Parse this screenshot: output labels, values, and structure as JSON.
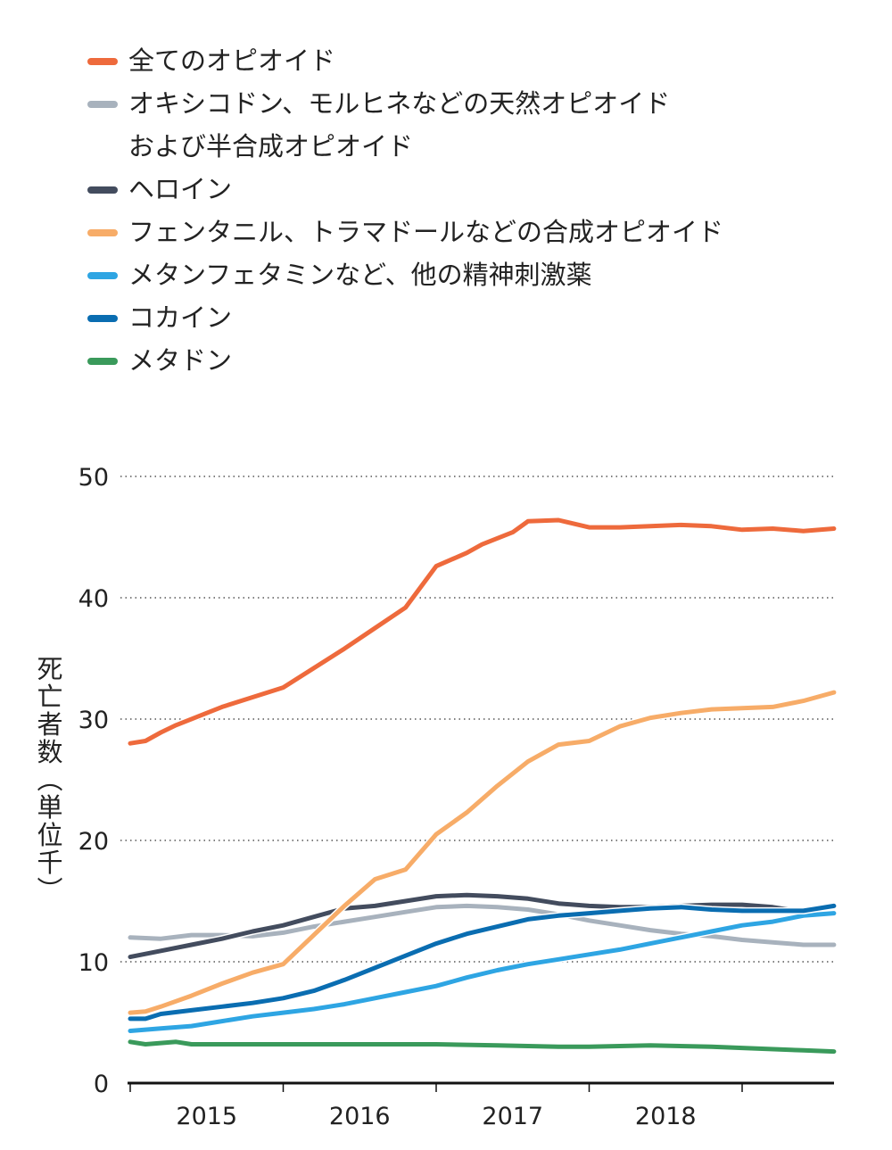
{
  "chart_data": {
    "type": "line",
    "title": "",
    "xlabel": "",
    "ylabel": "死亡者数（単位 千）",
    "ylim": [
      0,
      50
    ],
    "xlim": [
      2015,
      2019.6
    ],
    "yticks": [
      0,
      10,
      20,
      30,
      40,
      50
    ],
    "xticks": [
      "2015",
      "2016",
      "2017",
      "2018"
    ],
    "grid": "horizontal dotted",
    "legend_position": "top-left",
    "series": [
      {
        "name": "全てのオピオイド",
        "color": "#EE6A3C",
        "x": [
          2015,
          2015.1,
          2015.2,
          2015.3,
          2015.5,
          2015.6,
          2015.8,
          2016,
          2016.2,
          2016.4,
          2016.6,
          2016.8,
          2017,
          2017.2,
          2017.3,
          2017.5,
          2017.6,
          2017.8,
          2018,
          2018.2,
          2018.4,
          2018.6,
          2018.8,
          2019,
          2019.2,
          2019.4,
          2019.6
        ],
        "y": [
          28,
          28.2,
          28.9,
          29.5,
          30.5,
          31,
          31.8,
          32.6,
          34.2,
          35.8,
          37.5,
          39.2,
          42.6,
          43.7,
          44.4,
          45.4,
          46.3,
          46.4,
          45.8,
          45.8,
          45.9,
          46.0,
          45.9,
          45.6,
          45.7,
          45.5,
          45.7
        ]
      },
      {
        "name": "オキシコドン、モルヒネなどの天然オピオイド\nおよび半合成オピオイド",
        "color": "#A8B2BD",
        "x": [
          2015,
          2015.2,
          2015.4,
          2015.6,
          2015.8,
          2016,
          2016.2,
          2016.4,
          2016.6,
          2016.8,
          2017,
          2017.2,
          2017.4,
          2017.6,
          2017.8,
          2018,
          2018.2,
          2018.4,
          2018.6,
          2018.8,
          2019,
          2019.2,
          2019.4,
          2019.6
        ],
        "y": [
          12,
          11.9,
          12.2,
          12.2,
          12.1,
          12.4,
          12.9,
          13.3,
          13.7,
          14.1,
          14.5,
          14.6,
          14.5,
          14.3,
          13.9,
          13.4,
          13.0,
          12.6,
          12.3,
          12.1,
          11.8,
          11.6,
          11.4,
          11.4
        ]
      },
      {
        "name": "ヘロイン",
        "color": "#434C5E",
        "x": [
          2015,
          2015.2,
          2015.4,
          2015.6,
          2015.8,
          2016,
          2016.2,
          2016.4,
          2016.6,
          2016.8,
          2017,
          2017.2,
          2017.4,
          2017.6,
          2017.8,
          2018,
          2018.2,
          2018.4,
          2018.6,
          2018.8,
          2019,
          2019.2,
          2019.4
        ],
        "y": [
          10.4,
          10.9,
          11.4,
          11.9,
          12.5,
          13.0,
          13.7,
          14.4,
          14.6,
          15.0,
          15.4,
          15.5,
          15.4,
          15.2,
          14.8,
          14.6,
          14.5,
          14.5,
          14.6,
          14.7,
          14.7,
          14.5,
          14.1
        ]
      },
      {
        "name": "フェンタニル、トラマドールなどの合成オピオイド",
        "color": "#F7AC68",
        "x": [
          2015,
          2015.1,
          2015.2,
          2015.4,
          2015.6,
          2015.8,
          2016,
          2016.2,
          2016.4,
          2016.6,
          2016.8,
          2017,
          2017.2,
          2017.4,
          2017.6,
          2017.8,
          2018,
          2018.2,
          2018.4,
          2018.6,
          2018.8,
          2019,
          2019.2,
          2019.4,
          2019.6
        ],
        "y": [
          5.8,
          5.9,
          6.3,
          7.2,
          8.2,
          9.1,
          9.8,
          12.2,
          14.6,
          16.8,
          17.6,
          20.5,
          22.3,
          24.5,
          26.5,
          27.9,
          28.2,
          29.4,
          30.1,
          30.5,
          30.8,
          30.9,
          31.0,
          31.5,
          32.2
        ]
      },
      {
        "name": "メタンフェタミンなど、他の精神刺激薬",
        "color": "#2EA5E3",
        "x": [
          2015,
          2015.2,
          2015.4,
          2015.6,
          2015.8,
          2016,
          2016.2,
          2016.4,
          2016.6,
          2016.8,
          2017,
          2017.2,
          2017.4,
          2017.6,
          2017.8,
          2018,
          2018.2,
          2018.4,
          2018.6,
          2018.8,
          2019,
          2019.2,
          2019.4,
          2019.6
        ],
        "y": [
          4.3,
          4.5,
          4.7,
          5.1,
          5.5,
          5.8,
          6.1,
          6.5,
          7.0,
          7.5,
          8.0,
          8.7,
          9.3,
          9.8,
          10.2,
          10.6,
          11.0,
          11.5,
          12.0,
          12.5,
          13.0,
          13.3,
          13.8,
          14.0
        ]
      },
      {
        "name": "コカイン",
        "color": "#0A6DB1",
        "x": [
          2015,
          2015.1,
          2015.2,
          2015.4,
          2015.6,
          2015.8,
          2016,
          2016.2,
          2016.4,
          2016.6,
          2016.8,
          2017,
          2017.2,
          2017.4,
          2017.6,
          2017.8,
          2018,
          2018.2,
          2018.4,
          2018.6,
          2018.8,
          2019,
          2019.2,
          2019.4,
          2019.6
        ],
        "y": [
          5.3,
          5.3,
          5.7,
          6.0,
          6.3,
          6.6,
          7.0,
          7.6,
          8.5,
          9.5,
          10.5,
          11.5,
          12.3,
          12.9,
          13.5,
          13.8,
          14.0,
          14.2,
          14.4,
          14.5,
          14.3,
          14.2,
          14.2,
          14.2,
          14.6
        ]
      },
      {
        "name": "メタドン",
        "color": "#3A9A5B",
        "x": [
          2015,
          2015.1,
          2015.3,
          2015.4,
          2015.6,
          2015.8,
          2016,
          2016.4,
          2016.8,
          2017,
          2017.4,
          2017.8,
          2018,
          2018.4,
          2018.8,
          2019,
          2019.4,
          2019.6
        ],
        "y": [
          3.4,
          3.2,
          3.4,
          3.2,
          3.2,
          3.2,
          3.2,
          3.2,
          3.2,
          3.2,
          3.1,
          3.0,
          3.0,
          3.1,
          3.0,
          2.9,
          2.7,
          2.6
        ]
      }
    ]
  }
}
